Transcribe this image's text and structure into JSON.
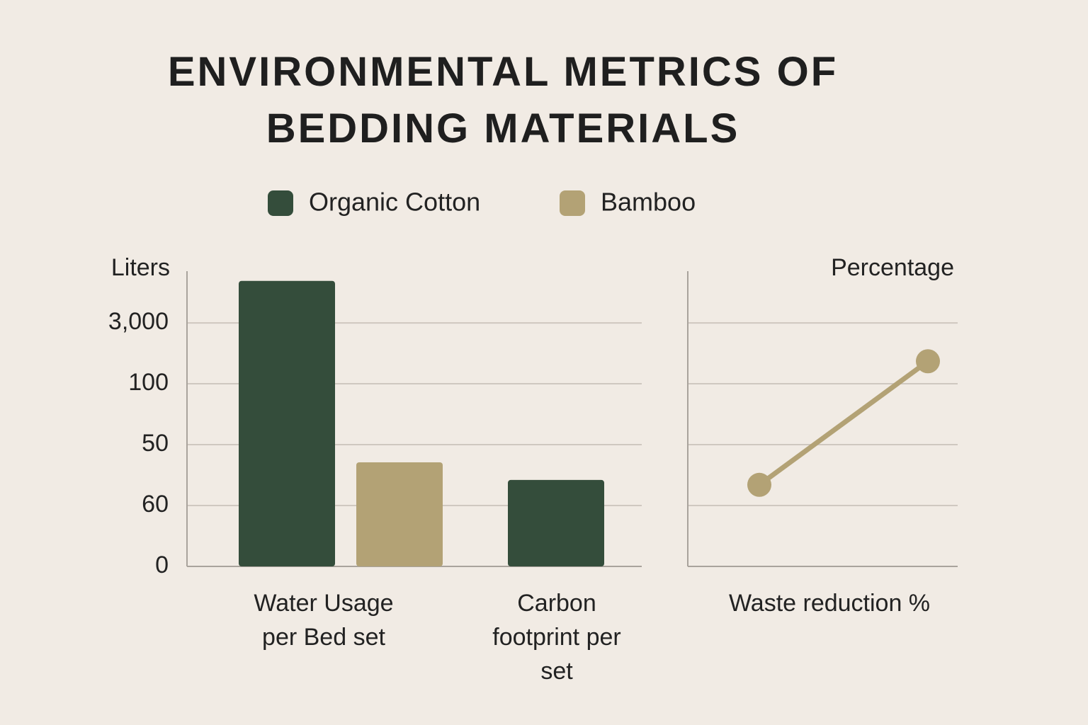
{
  "chart_data": [
    {
      "type": "bar",
      "title": "ENVIRONMENTAL METRICS OF BEDDING MATERIALS",
      "y_label": "Liters",
      "y_levels": [
        "0",
        "60",
        "50",
        "100",
        "3,000"
      ],
      "ylim": [
        0,
        4.85
      ],
      "categories": [
        "Water Usage per Bed set",
        "Carbon footprint per set"
      ],
      "series": [
        {
          "name": "Organic Cotton",
          "color": "#344d3b",
          "values": [
            4.69,
            1.42
          ]
        },
        {
          "name": "Bamboo",
          "color": "#b3a275",
          "values": [
            1.71,
            null
          ]
        }
      ],
      "grid": true
    },
    {
      "type": "line",
      "y_label": "Percentage",
      "x_label": "Waste reduction %",
      "ylim": [
        0,
        4.85
      ],
      "grid_levels": 5,
      "series": [
        {
          "name": "Bamboo",
          "color": "#b3a275",
          "values": [
            1.34,
            3.37
          ]
        }
      ],
      "grid": true
    }
  ]
}
